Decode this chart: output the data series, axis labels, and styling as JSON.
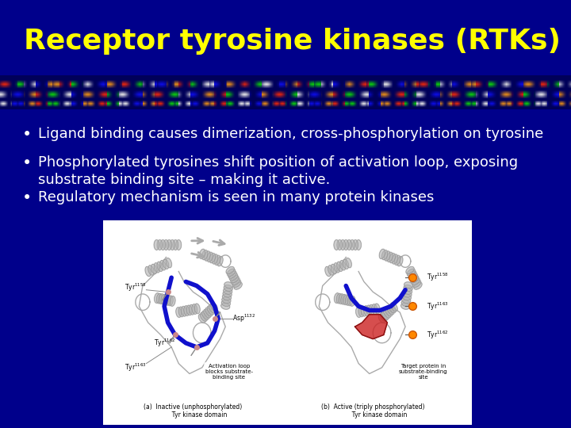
{
  "background_color": "#00008B",
  "title": "Receptor tyrosine kinases (RTKs)",
  "title_color": "#FFFF00",
  "title_fontsize": 26,
  "bullet_points": [
    "Ligand binding causes dimerization, cross-phosphorylation on tyrosine",
    "Phosphorylated tyrosines shift position of activation loop, exposing\nsubstrate binding site – making it active.",
    "Regulatory mechanism is seen in many protein kinases"
  ],
  "bullet_color": "#FFFFFF",
  "bullet_fontsize": 13,
  "band_colors": {
    "red": [
      0.85,
      0.15,
      0.05
    ],
    "green": [
      0.05,
      0.75,
      0.05
    ],
    "blue": [
      0.05,
      0.05,
      0.85
    ],
    "white": [
      0.95,
      0.95,
      0.95
    ],
    "orange": [
      0.95,
      0.55,
      0.05
    ]
  }
}
